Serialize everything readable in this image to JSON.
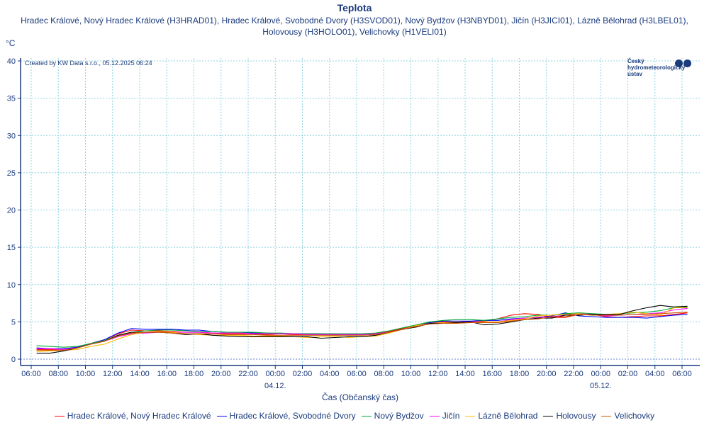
{
  "chart_data": {
    "type": "line",
    "title": "Teplota",
    "subtitle": "Hradec Králové, Nový Hradec Králové (H3HRAD01), Hradec Králové, Svobodné Dvory (H3SVOD01), Nový Bydžov (H3NBYD01), Jičín (H3JICI01), Lázně Bělohrad (H3LBEL01), Holovousy (H3HOLO01), Velichovky (H1VELI01)",
    "ylabel": "°C",
    "xlabel": "Čas (Občanský čas)",
    "credit": "Created by KW Data s.r.o., 05.12.2025 06:24",
    "logo_text": [
      "Český",
      "hydrometeorologický",
      "ústav"
    ],
    "ylim": [
      0,
      40
    ],
    "yticks": [
      "0",
      "5",
      "10",
      "15",
      "20",
      "25",
      "30",
      "35",
      "40"
    ],
    "xrange_hours": [
      -0.8,
      49.3
    ],
    "xticks": [
      "06:00",
      "08:00",
      "10:00",
      "12:00",
      "14:00",
      "16:00",
      "18:00",
      "20:00",
      "22:00",
      "00:00",
      "02:00",
      "04:00",
      "06:00",
      "08:00",
      "10:00",
      "12:00",
      "14:00",
      "16:00",
      "18:00",
      "20:00",
      "22:00",
      "00:00",
      "02:00",
      "04:00",
      "06:00"
    ],
    "date_labels": [
      {
        "label": "04.12.",
        "hour": 18
      },
      {
        "label": "05.12.",
        "hour": 42
      }
    ],
    "x_start_hour": 0.4,
    "x_step_hours": 1,
    "grid": true,
    "legend_position": "bottom",
    "series": [
      {
        "name": "Hradec Králové, Nový Hradec Králové",
        "color": "#ff0000",
        "values": [
          1.3,
          1.3,
          1.3,
          1.6,
          2.1,
          2.6,
          3.4,
          3.9,
          3.8,
          3.8,
          3.7,
          3.6,
          3.6,
          3.5,
          3.4,
          3.4,
          3.4,
          3.3,
          3.4,
          3.3,
          3.3,
          3.3,
          3.3,
          3.3,
          3.3,
          3.4,
          3.7,
          4.1,
          4.5,
          4.9,
          5.0,
          5.0,
          5.0,
          5.1,
          5.4,
          5.9,
          6.1,
          6.0,
          5.6,
          5.6,
          6.0,
          6.0,
          5.7,
          5.6,
          5.7,
          5.8,
          5.8,
          6.0,
          6.2
        ]
      },
      {
        "name": "Hradec Králové, Svobodné Dvory",
        "color": "#0000ff",
        "values": [
          1.5,
          1.4,
          1.4,
          1.6,
          2.1,
          2.6,
          3.5,
          4.1,
          4.0,
          4.0,
          4.0,
          3.9,
          3.9,
          3.7,
          3.6,
          3.6,
          3.5,
          3.5,
          3.4,
          3.4,
          3.4,
          3.4,
          3.3,
          3.3,
          3.3,
          3.4,
          3.6,
          4.0,
          4.5,
          4.9,
          5.1,
          5.1,
          5.1,
          5.2,
          5.2,
          5.4,
          5.5,
          5.6,
          5.8,
          6.2,
          5.8,
          5.7,
          5.6,
          5.6,
          5.6,
          5.5,
          5.7,
          5.9,
          6.0
        ]
      },
      {
        "name": "Nový Bydžov",
        "color": "#00aa33",
        "values": [
          1.8,
          1.7,
          1.6,
          1.7,
          2.1,
          2.5,
          3.2,
          3.6,
          3.8,
          3.9,
          3.9,
          3.8,
          3.7,
          3.7,
          3.6,
          3.6,
          3.6,
          3.5,
          3.5,
          3.4,
          3.4,
          3.4,
          3.4,
          3.4,
          3.4,
          3.5,
          3.8,
          4.2,
          4.6,
          5.0,
          5.2,
          5.3,
          5.3,
          5.2,
          5.4,
          5.6,
          5.7,
          5.9,
          5.9,
          6.1,
          6.2,
          6.1,
          6.0,
          6.1,
          6.2,
          6.3,
          6.5,
          6.9,
          7.0
        ]
      },
      {
        "name": "Jičín",
        "color": "#ff00ff",
        "values": [
          1.4,
          1.4,
          1.3,
          1.5,
          2.0,
          2.4,
          3.0,
          3.4,
          3.5,
          3.6,
          3.6,
          3.6,
          3.6,
          3.5,
          3.5,
          3.5,
          3.4,
          3.4,
          3.4,
          3.4,
          3.3,
          3.3,
          3.3,
          3.3,
          3.3,
          3.4,
          3.6,
          4.0,
          4.4,
          4.8,
          4.9,
          4.9,
          5.0,
          5.0,
          5.0,
          5.3,
          5.5,
          5.6,
          5.7,
          5.9,
          6.1,
          6.0,
          5.8,
          5.9,
          6.0,
          6.1,
          6.2,
          6.6,
          6.8
        ]
      },
      {
        "name": "Lázně Bělohrad",
        "color": "#ffbb00",
        "values": [
          1.0,
          1.1,
          1.2,
          1.3,
          1.7,
          2.0,
          2.7,
          3.3,
          3.6,
          3.7,
          3.6,
          3.4,
          3.3,
          3.2,
          3.2,
          3.2,
          3.1,
          3.1,
          3.1,
          3.0,
          2.9,
          3.0,
          3.1,
          2.9,
          3.0,
          3.1,
          3.5,
          4.0,
          4.5,
          4.8,
          4.9,
          5.0,
          4.9,
          5.0,
          5.0,
          5.2,
          5.4,
          5.8,
          5.9,
          6.0,
          6.1,
          5.9,
          6.0,
          6.1,
          6.3,
          6.1,
          5.9,
          6.9,
          6.9
        ]
      },
      {
        "name": "Holovousy",
        "color": "#000000",
        "values": [
          0.8,
          0.8,
          1.1,
          1.5,
          2.0,
          2.4,
          3.2,
          3.6,
          3.6,
          3.6,
          3.5,
          3.3,
          3.4,
          3.2,
          3.1,
          3.0,
          3.0,
          3.0,
          3.0,
          3.0,
          3.0,
          2.8,
          2.9,
          3.0,
          3.0,
          3.2,
          3.6,
          4.0,
          4.3,
          4.8,
          4.8,
          4.9,
          5.0,
          4.6,
          4.7,
          5.0,
          5.3,
          5.5,
          5.5,
          5.9,
          5.9,
          6.0,
          6.0,
          6.0,
          6.5,
          6.9,
          7.2,
          7.0,
          7.1
        ]
      },
      {
        "name": "Velichovky",
        "color": "#cc5500",
        "values": [
          1.2,
          1.2,
          1.2,
          1.5,
          2.0,
          2.4,
          3.1,
          3.5,
          3.6,
          3.6,
          3.5,
          3.4,
          3.4,
          3.4,
          3.3,
          3.3,
          3.3,
          3.2,
          3.2,
          3.2,
          3.2,
          3.2,
          3.2,
          3.2,
          3.2,
          3.3,
          3.6,
          4.0,
          4.4,
          4.7,
          4.8,
          4.8,
          4.9,
          4.9,
          4.9,
          5.1,
          5.3,
          5.4,
          5.7,
          5.7,
          6.0,
          5.9,
          5.9,
          5.9,
          6.0,
          6.0,
          6.1,
          6.2,
          6.3
        ]
      }
    ]
  }
}
